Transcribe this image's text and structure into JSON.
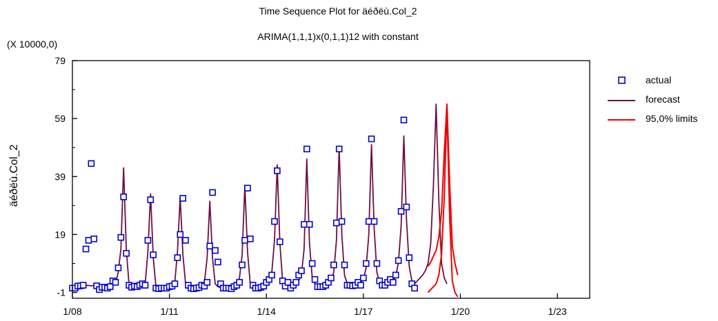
{
  "chart_data": {
    "type": "line",
    "title": "Time Sequence Plot for äéðëù.Col_2",
    "subtitle": "ARIMA(1,1,1)x(0,1,1)12 with constant",
    "multiplier": "(X 10000,0)",
    "xlabel": "",
    "ylabel": "äéðëù.Col_2",
    "xlim": [
      2008.0,
      2024.0
    ],
    "ylim": [
      -3,
      79
    ],
    "x_ticks": [
      2008,
      2011,
      2014,
      2017,
      2020,
      2023
    ],
    "x_tick_labels": [
      "1/08",
      "1/11",
      "1/14",
      "1/17",
      "1/20",
      "1/23"
    ],
    "y_ticks": [
      -1,
      19,
      39,
      59,
      79
    ],
    "y_tick_labels": [
      "-1",
      "19",
      "39",
      "59",
      "79"
    ],
    "grid": false,
    "legend_position": "right",
    "legend": [
      "actual",
      "forecast",
      "95,0% limits"
    ],
    "colors": {
      "actual": "#0000cc",
      "forecast": "#6b0f3f",
      "limits": "#ee0000"
    },
    "series": [
      {
        "name": "actual",
        "style": "markers",
        "start": 2008.0,
        "step": 0.083333,
        "values": [
          0.5,
          0.5,
          1.2,
          1.3,
          1.5,
          14,
          17,
          43.5,
          17.5,
          1.3,
          0,
          0.8,
          0.8,
          0.5,
          1,
          3,
          2.5,
          7.5,
          18,
          32,
          12.5,
          1.5,
          0.8,
          1.2,
          1,
          1.5,
          2,
          1.5,
          17,
          31,
          12,
          0.5,
          0.3,
          0.5,
          0.5,
          0.5,
          1,
          1.2,
          2,
          11,
          19,
          31.5,
          17,
          1.5,
          0.5,
          0.3,
          0.5,
          0.7,
          1.5,
          1.2,
          2.5,
          15,
          33.5,
          13.5,
          9.5,
          2,
          0.5,
          0.5,
          0.5,
          0.3,
          1,
          1.5,
          2.5,
          8.5,
          17,
          35,
          17.5,
          1.5,
          0.5,
          0.5,
          0.8,
          1.2,
          2.5,
          3.5,
          5,
          23.5,
          41,
          16.5,
          3,
          1.2,
          2.5,
          0.5,
          1.5,
          2.5,
          5,
          6.5,
          22.5,
          48.5,
          22.5,
          9,
          3.5,
          1,
          1,
          1,
          1.5,
          2.5,
          4,
          8.5,
          23,
          48.5,
          23.5,
          8.5,
          1.5,
          1.5,
          1.3,
          1.5,
          2.5,
          1.5,
          4,
          9,
          23.5,
          52,
          23.5,
          9,
          3,
          1.5,
          1.5,
          2.5,
          3.5,
          2.5,
          5,
          10,
          27,
          58.5,
          28.5,
          11,
          2,
          0.5
        ]
      },
      {
        "name": "forecast",
        "style": "line",
        "start": 2008.0,
        "step": 0.083333,
        "values": [
          0.6,
          0.8,
          1.0,
          1.2,
          1.3,
          1.5,
          1.4,
          1.3,
          1.4,
          1.3,
          1.2,
          1.2,
          1.2,
          1.1,
          1.3,
          1.6,
          2.0,
          6.0,
          14.0,
          42.0,
          14.0,
          2.0,
          0.5,
          0.4,
          0.5,
          0.6,
          1.0,
          2.0,
          13.0,
          33.0,
          11.0,
          1.0,
          0.4,
          0.4,
          0.5,
          0.6,
          0.8,
          1.5,
          2.5,
          13.0,
          32.0,
          12.0,
          2.0,
          0.7,
          0.5,
          0.6,
          0.8,
          1.0,
          1.5,
          2.5,
          11.0,
          30.5,
          11.0,
          2.0,
          1.0,
          0.7,
          0.6,
          0.7,
          0.8,
          1.0,
          1.4,
          2.0,
          4.0,
          12.0,
          36.0,
          13.0,
          2.0,
          0.8,
          0.6,
          0.7,
          0.9,
          1.3,
          2.0,
          3.5,
          6.0,
          17.0,
          43.0,
          16.0,
          3.0,
          1.2,
          1.0,
          1.2,
          1.5,
          2.0,
          3.0,
          5.0,
          14.0,
          45.0,
          16.0,
          4.0,
          2.0,
          1.3,
          1.2,
          1.3,
          1.6,
          2.2,
          3.0,
          6.0,
          17.0,
          49.0,
          19.0,
          5.0,
          2.0,
          1.4,
          1.3,
          1.5,
          1.8,
          2.5,
          3.5,
          7.5,
          19.0,
          50.0,
          21.0,
          6.0,
          2.5,
          1.6,
          1.5,
          1.8,
          2.2,
          3.0,
          4.5,
          9.5,
          22.0,
          53.0,
          24.0,
          8.0,
          3.0,
          2.0,
          3.0,
          4.0,
          5.0,
          6.5,
          9.0,
          16.0,
          36.0,
          64.0,
          31.0,
          9.0,
          4.0,
          2.0
        ]
      },
      {
        "name": "95,0% limits (upper)",
        "style": "line",
        "start": 2019.0,
        "step": 0.083333,
        "values": [
          8.0,
          9.5,
          11.5,
          13.5,
          18.0,
          27.0,
          47.0,
          64.0,
          37.0,
          15.0,
          9.0,
          5.0
        ]
      },
      {
        "name": "95,0% limits (lower)",
        "style": "line",
        "start": 2019.0,
        "step": 0.083333,
        "values": [
          -1.0,
          0.0,
          1.0,
          2.0,
          5.0,
          12.0,
          32.0,
          63.0,
          25.0,
          3.0,
          -1.0,
          -2.5
        ]
      }
    ]
  }
}
